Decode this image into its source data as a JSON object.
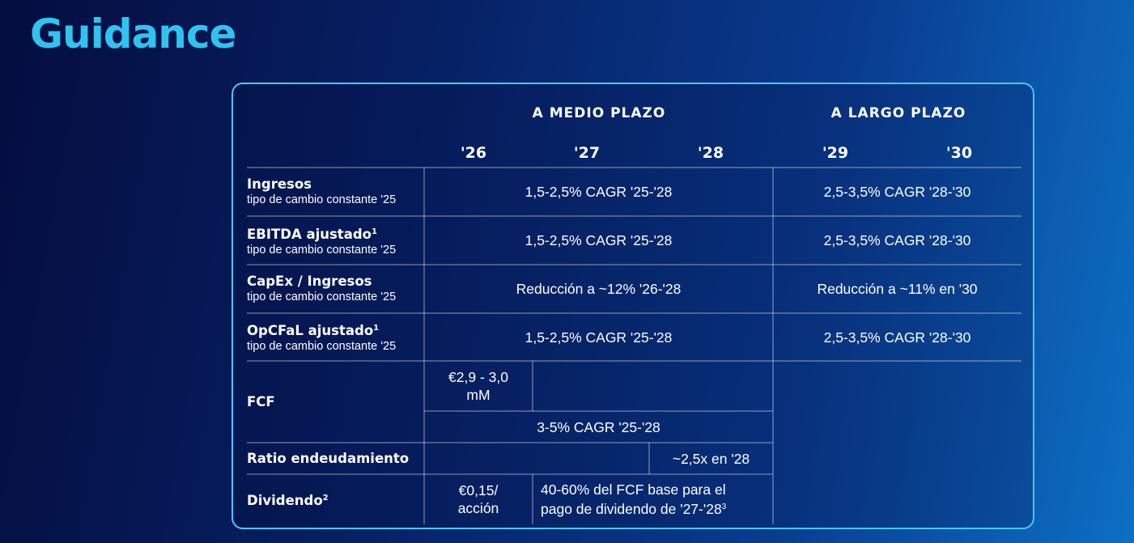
{
  "title": "Guidance",
  "groups": {
    "medium": "A MEDIO PLAZO",
    "long": "A LARGO PLAZO"
  },
  "years": [
    "'26",
    "'27",
    "'28",
    "'29",
    "'30"
  ],
  "rows": {
    "ingresos": {
      "label": "Ingresos",
      "sub": "tipo de cambio constante '25",
      "mid": "1,5-2,5% CAGR '25-'28",
      "long": "2,5-3,5% CAGR '28-'30"
    },
    "ebitda": {
      "label": "EBITDA ajustado",
      "sup": "1",
      "sub": "tipo de cambio constante '25",
      "mid": "1,5-2,5% CAGR '25-'28",
      "long": "2,5-3,5% CAGR '28-'30"
    },
    "capex": {
      "label": "CapEx / Ingresos",
      "sub": "tipo de cambio constante '25",
      "mid": "Reducción a ~12% '26-'28",
      "long": "Reducción a ~11% en '30"
    },
    "opcfal": {
      "label": "OpCFaL ajustado",
      "sup": "1",
      "sub": "tipo de cambio constante '25",
      "mid": "1,5-2,5% CAGR '25-'28",
      "long": "2,5-3,5% CAGR '28-'30"
    },
    "fcf": {
      "label": "FCF",
      "y26_line1": "€2,9 - 3,0",
      "y26_line2": "mM",
      "cagr": "3-5% CAGR '25-'28"
    },
    "ratio": {
      "label": "Ratio endeudamiento",
      "y28": "~2,5x en '28"
    },
    "dividendo": {
      "label": "Dividendo",
      "sup": "2",
      "y26_line1": "€0,15/",
      "y26_line2": "acción",
      "rest_line1": "40-60% del FCF base para el",
      "rest_line2": "pago de dividendo de '27-'28",
      "rest_sup": "3"
    }
  }
}
